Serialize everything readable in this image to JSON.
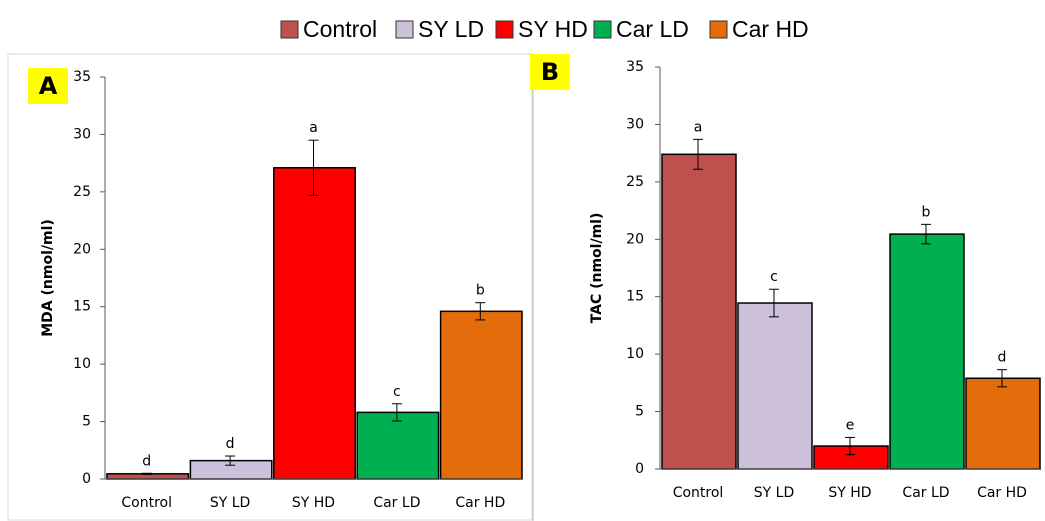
{
  "legend": [
    {
      "name": "Control",
      "color": "#c0504d"
    },
    {
      "name": "SY LD",
      "color": "#ccc0da"
    },
    {
      "name": "SY HD",
      "color": "#ff0000"
    },
    {
      "name": "Car LD",
      "color": "#00b050"
    },
    {
      "name": "Car HD",
      "color": "#e46c0a"
    }
  ],
  "chart_data": [
    {
      "type": "bar",
      "panel": "A",
      "y_label": "MDA (nmol/ml)",
      "categories": [
        "Control",
        "SY LD",
        "SY HD",
        "Car LD",
        "Car HD"
      ],
      "values": [
        0.45,
        1.6,
        27.1,
        5.8,
        14.6
      ],
      "errors": [
        0.05,
        0.4,
        2.4,
        0.75,
        0.75
      ],
      "annotations": [
        "d",
        "d",
        "a",
        "c",
        "b"
      ],
      "colors": [
        "#c0504d",
        "#ccc0da",
        "#ff0000",
        "#00b050",
        "#e46c0a"
      ],
      "ylim": [
        0,
        35
      ],
      "yticks": [
        0,
        5,
        10,
        15,
        20,
        25,
        30,
        35
      ],
      "grid": false
    },
    {
      "type": "bar",
      "panel": "B",
      "y_label": "TAC (nmol/ml)",
      "categories": [
        "Control",
        "SY LD",
        "SY HD",
        "Car LD",
        "Car HD"
      ],
      "values": [
        27.4,
        14.45,
        2.0,
        20.45,
        7.9
      ],
      "errors": [
        1.3,
        1.2,
        0.75,
        0.85,
        0.75
      ],
      "annotations": [
        "a",
        "c",
        "e",
        "b",
        "d"
      ],
      "colors": [
        "#c0504d",
        "#ccc0da",
        "#ff0000",
        "#00b050",
        "#e46c0a"
      ],
      "ylim": [
        0,
        35
      ],
      "yticks": [
        0,
        5,
        10,
        15,
        20,
        25,
        30,
        35
      ],
      "grid": false
    }
  ]
}
